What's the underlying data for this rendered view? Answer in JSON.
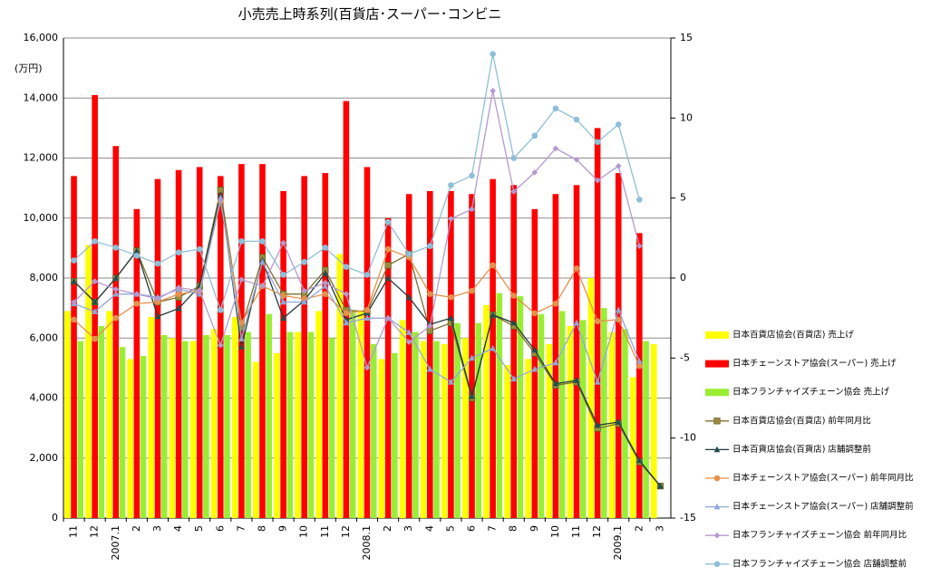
{
  "chart_data": {
    "type": "combo",
    "title": "小売売上時系列(百貨店･スーパー･コンビニ",
    "y_label": "(万円)",
    "categories": [
      "11",
      "12",
      "2007.1",
      "2",
      "3",
      "4",
      "5",
      "6",
      "7",
      "8",
      "9",
      "10",
      "11",
      "12",
      "2008.1",
      "2",
      "3",
      "4",
      "5",
      "6",
      "7",
      "8",
      "9",
      "10",
      "11",
      "12",
      "2009.1",
      "2",
      "3"
    ],
    "ylim": [
      0,
      16000
    ],
    "yticks": [
      0,
      {
        "value": 2000,
        "label": "2,000"
      },
      {
        "value": 4000,
        "label": "4,000"
      },
      {
        "value": 6000,
        "label": "6,000"
      },
      {
        "value": 8000,
        "label": "8,000"
      },
      {
        "value": 10000,
        "label": "10,000"
      },
      {
        "value": 12000,
        "label": "12,000"
      },
      {
        "value": 14000,
        "label": "14,000"
      },
      {
        "value": 16000,
        "label": "16,000"
      }
    ],
    "y2lim": [
      -15,
      15
    ],
    "y2ticks": [
      -15,
      -10,
      -5,
      0,
      5,
      10,
      15
    ],
    "grid": true,
    "legend": "right",
    "series": [
      {
        "name": "日本百貨店協会(百貨店) 売上げ",
        "type": "bar",
        "color": "#ffff00",
        "values": [
          6900,
          9100,
          6900,
          5300,
          6700,
          6000,
          5900,
          6300,
          6700,
          5200,
          5500,
          6200,
          6900,
          8800,
          6900,
          5300,
          6600,
          5900,
          5800,
          6000,
          7100,
          5100,
          5300,
          5800,
          6400,
          8000,
          6200,
          4700,
          5800
        ]
      },
      {
        "name": "日本チェーンストア協会(スーパー) 売上げ",
        "type": "bar",
        "color": "#ff0000",
        "values": [
          11400,
          14100,
          12400,
          10300,
          11300,
          11600,
          11700,
          11400,
          11800,
          11800,
          10900,
          11400,
          11500,
          13900,
          11700,
          10000,
          10800,
          10900,
          10900,
          10800,
          11300,
          11100,
          10300,
          10800,
          11100,
          13000,
          11500,
          9500,
          null
        ]
      },
      {
        "name": "日本フランチャイズチェーン協会 売上げ",
        "type": "bar",
        "color": "#99ee33",
        "values": [
          5900,
          6400,
          5700,
          5400,
          6100,
          5900,
          6100,
          6100,
          6200,
          6800,
          6200,
          6200,
          6000,
          6900,
          5800,
          5500,
          6200,
          5900,
          6500,
          6500,
          7500,
          7400,
          6800,
          6900,
          6600,
          7000,
          6300,
          5900,
          null
        ]
      },
      {
        "name": "日本百貨店協会(百貨店) 前年同月比",
        "type": "line",
        "axis": "y2",
        "color": "#7f7030",
        "marker": "square",
        "marker_color": "#9b8b3b",
        "values": [
          -0.2,
          -1.5,
          0.0,
          1.7,
          -1.5,
          -1.2,
          -0.5,
          5.5,
          -3.1,
          1.3,
          -1.0,
          -1.0,
          0.5,
          -2.0,
          -2.1,
          0.8,
          1.5,
          -3.3,
          -2.8,
          -7.5,
          -2.3,
          -3.0,
          -4.7,
          -6.7,
          -6.5,
          -9.4,
          -9.1,
          -11.5,
          -13.0
        ]
      },
      {
        "name": "日本百貨店協会(百貨店) 店舗調整前",
        "type": "line",
        "axis": "y2",
        "color": "#1f3a3a",
        "marker": "triangle",
        "marker_color": "#1f4f4f",
        "values": [
          -0.2,
          -1.5,
          0.0,
          1.7,
          -2.4,
          -1.9,
          -0.5,
          5.2,
          -4.3,
          1.1,
          -2.5,
          -1.4,
          0.3,
          -2.6,
          -2.2,
          0.0,
          -1.2,
          -2.9,
          -2.5,
          -7.4,
          -2.3,
          -2.8,
          -4.5,
          -6.6,
          -6.4,
          -9.2,
          -9.0,
          -11.4,
          -13.0
        ]
      },
      {
        "name": "日本チェーンストア協会(スーパー) 前年同月比",
        "type": "line",
        "axis": "y2",
        "color": "#e8904a",
        "marker": "circle",
        "marker_color": "#e8904a",
        "values": [
          -2.6,
          -3.8,
          -2.5,
          -1.6,
          -1.5,
          -1.0,
          -0.8,
          4.8,
          -2.8,
          -0.5,
          -1.1,
          -1.3,
          -1.0,
          -2.2,
          -2.0,
          1.8,
          1.3,
          -1.0,
          -1.2,
          -0.8,
          0.8,
          -1.1,
          -2.2,
          -1.6,
          0.6,
          -2.7,
          -2.6,
          -5.5,
          null
        ]
      },
      {
        "name": "日本チェーンストア協会(スーパー) 店舗調整前",
        "type": "line",
        "axis": "y2",
        "color": "#8fa8d8",
        "marker": "triangle",
        "marker_color": "#8fa8d8",
        "values": [
          -1.6,
          -2.1,
          -1.0,
          -1.0,
          -1.2,
          -0.7,
          -1.0,
          5.0,
          -3.8,
          1.0,
          -1.5,
          -1.5,
          -0.5,
          -2.8,
          -2.5,
          -2.5,
          -3.4,
          -5.7,
          -6.5,
          -5.0,
          -4.4,
          -6.3,
          -5.7,
          -5.3,
          -2.8,
          -6.5,
          -2.0,
          -5.2,
          null
        ]
      },
      {
        "name": "日本フランチャイズチェーン協会 前年同月比",
        "type": "line",
        "axis": "y2",
        "color": "#b49ad0",
        "marker": "diamond",
        "marker_color": "#b49ad0",
        "values": [
          -1.5,
          -0.2,
          -0.7,
          -1.0,
          -1.3,
          -0.6,
          -0.8,
          -4.2,
          -0.1,
          -0.5,
          2.2,
          -0.8,
          -0.3,
          -1.0,
          -5.6,
          -2.5,
          -4.0,
          -3.0,
          3.7,
          4.3,
          11.7,
          5.4,
          6.6,
          8.1,
          7.4,
          6.1,
          7.0,
          2.0,
          null
        ]
      },
      {
        "name": "日本フランチャイズチェーン協会 店舗調整前",
        "type": "line",
        "axis": "y2",
        "color": "#8fbfd8",
        "marker": "circle",
        "marker_color": "#8fbfd8",
        "values": [
          1.1,
          2.3,
          1.9,
          1.4,
          0.9,
          1.6,
          1.8,
          -2.0,
          2.3,
          2.3,
          0.2,
          1.0,
          1.9,
          0.7,
          0.2,
          3.5,
          1.5,
          2.0,
          5.8,
          6.4,
          14.0,
          7.5,
          8.9,
          10.6,
          9.9,
          8.5,
          9.6,
          4.9,
          null
        ]
      }
    ]
  }
}
